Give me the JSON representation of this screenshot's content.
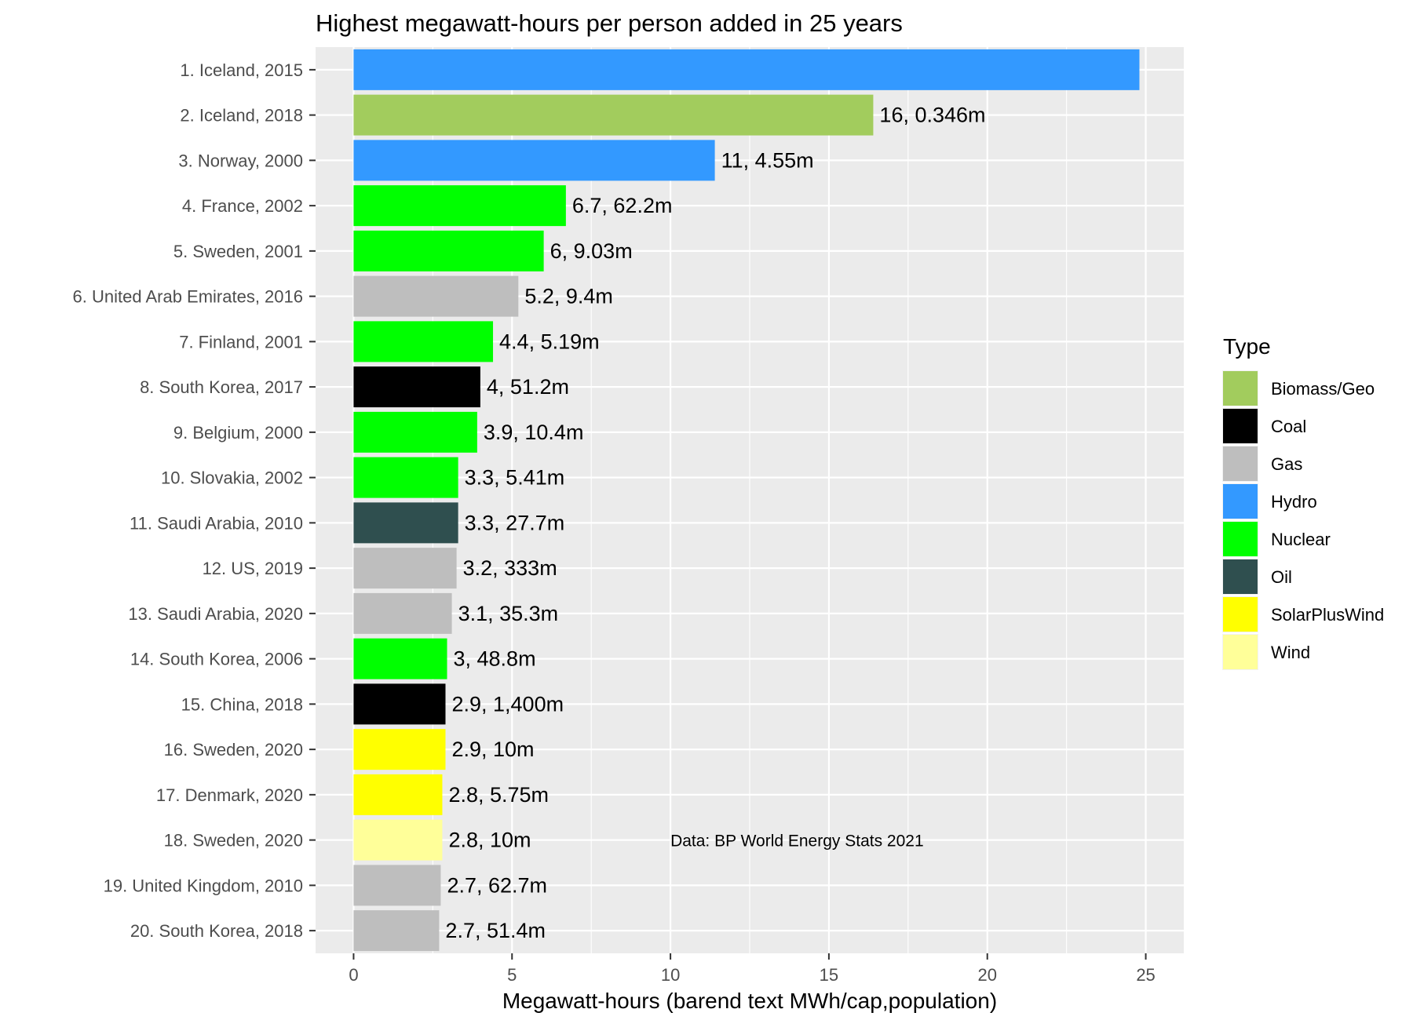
{
  "chart_data": {
    "type": "bar",
    "orientation": "horizontal",
    "title": "Highest megawatt-hours per person added in 25 years",
    "xlabel": "Megawatt-hours (barend text MWh/cap,population)",
    "ylabel": "",
    "xlim": [
      -1.2,
      26.2
    ],
    "xticks": [
      0,
      5,
      10,
      15,
      20,
      25
    ],
    "grid": true,
    "legend_position": "right",
    "annotation": "Data: BP World Energy Stats 2021",
    "legend": {
      "title": "Type",
      "items": [
        {
          "name": "Biomass/Geo",
          "color": "#a2cc5d"
        },
        {
          "name": "Coal",
          "color": "#000000"
        },
        {
          "name": "Gas",
          "color": "#bebebe"
        },
        {
          "name": "Hydro",
          "color": "#3399ff"
        },
        {
          "name": "Nuclear",
          "color": "#00ff00"
        },
        {
          "name": "Oil",
          "color": "#2f4f4f"
        },
        {
          "name": "SolarPlusWind",
          "color": "#ffff00"
        },
        {
          "name": "Wind",
          "color": "#ffff99"
        }
      ]
    },
    "bars": [
      {
        "category": "1. Iceland, 2015",
        "value": 24.8,
        "type": "Hydro",
        "label": ""
      },
      {
        "category": "2. Iceland, 2018",
        "value": 16.4,
        "type": "Biomass/Geo",
        "label": "16, 0.346m"
      },
      {
        "category": "3. Norway, 2000",
        "value": 11.4,
        "type": "Hydro",
        "label": "11, 4.55m"
      },
      {
        "category": "4. France, 2002",
        "value": 6.7,
        "type": "Nuclear",
        "label": "6.7, 62.2m"
      },
      {
        "category": "5. Sweden, 2001",
        "value": 6.0,
        "type": "Nuclear",
        "label": "6, 9.03m"
      },
      {
        "category": "6. United Arab Emirates, 2016",
        "value": 5.2,
        "type": "Gas",
        "label": "5.2, 9.4m"
      },
      {
        "category": "7. Finland, 2001",
        "value": 4.4,
        "type": "Nuclear",
        "label": "4.4, 5.19m"
      },
      {
        "category": "8. South Korea, 2017",
        "value": 4.0,
        "type": "Coal",
        "label": "4, 51.2m"
      },
      {
        "category": "9. Belgium, 2000",
        "value": 3.9,
        "type": "Nuclear",
        "label": "3.9, 10.4m"
      },
      {
        "category": "10. Slovakia, 2002",
        "value": 3.3,
        "type": "Nuclear",
        "label": "3.3, 5.41m"
      },
      {
        "category": "11. Saudi Arabia, 2010",
        "value": 3.3,
        "type": "Oil",
        "label": "3.3, 27.7m"
      },
      {
        "category": "12. US, 2019",
        "value": 3.25,
        "type": "Gas",
        "label": "3.2, 333m"
      },
      {
        "category": "13. Saudi Arabia, 2020",
        "value": 3.1,
        "type": "Gas",
        "label": "3.1, 35.3m"
      },
      {
        "category": "14. South Korea, 2006",
        "value": 2.95,
        "type": "Nuclear",
        "label": "3, 48.8m"
      },
      {
        "category": "15. China, 2018",
        "value": 2.9,
        "type": "Coal",
        "label": "2.9, 1,400m"
      },
      {
        "category": "16. Sweden, 2020",
        "value": 2.9,
        "type": "SolarPlusWind",
        "label": "2.9, 10m"
      },
      {
        "category": "17. Denmark, 2020",
        "value": 2.8,
        "type": "SolarPlusWind",
        "label": "2.8, 5.75m"
      },
      {
        "category": "18. Sweden, 2020",
        "value": 2.8,
        "type": "Wind",
        "label": "2.8, 10m"
      },
      {
        "category": "19. United Kingdom, 2010",
        "value": 2.75,
        "type": "Gas",
        "label": "2.7, 62.7m"
      },
      {
        "category": "20. South Korea, 2018",
        "value": 2.7,
        "type": "Gas",
        "label": "2.7, 51.4m"
      }
    ]
  }
}
